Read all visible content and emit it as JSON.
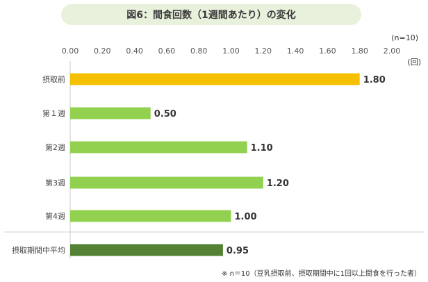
{
  "chart_data": {
    "type": "bar",
    "orientation": "horizontal",
    "title": "図6：間食回数（1週間あたり）の変化",
    "sample_note": "(n=10)",
    "unit": "(回)",
    "footnote": "※ n＝10（豆乳摂取前、摂取期間中に1回以上間食を行った者）",
    "xlim": [
      0,
      2.0
    ],
    "ticks": [
      "0.00",
      "0.20",
      "0.40",
      "0.60",
      "0.80",
      "1.00",
      "1.20",
      "1.40",
      "1.60",
      "1.80",
      "2.00"
    ],
    "categories": [
      "摂取前",
      "第１週",
      "第2週",
      "第3週",
      "第4週",
      "摂取期間中平均"
    ],
    "values": [
      1.8,
      0.5,
      1.1,
      1.2,
      1.0,
      0.95
    ],
    "value_labels": [
      "1.80",
      "0.50",
      "1.10",
      "1.20",
      "1.00",
      "0.95"
    ],
    "colors": [
      "#f5c000",
      "#92d050",
      "#92d050",
      "#92d050",
      "#92d050",
      "#548235"
    ],
    "grid": false
  }
}
